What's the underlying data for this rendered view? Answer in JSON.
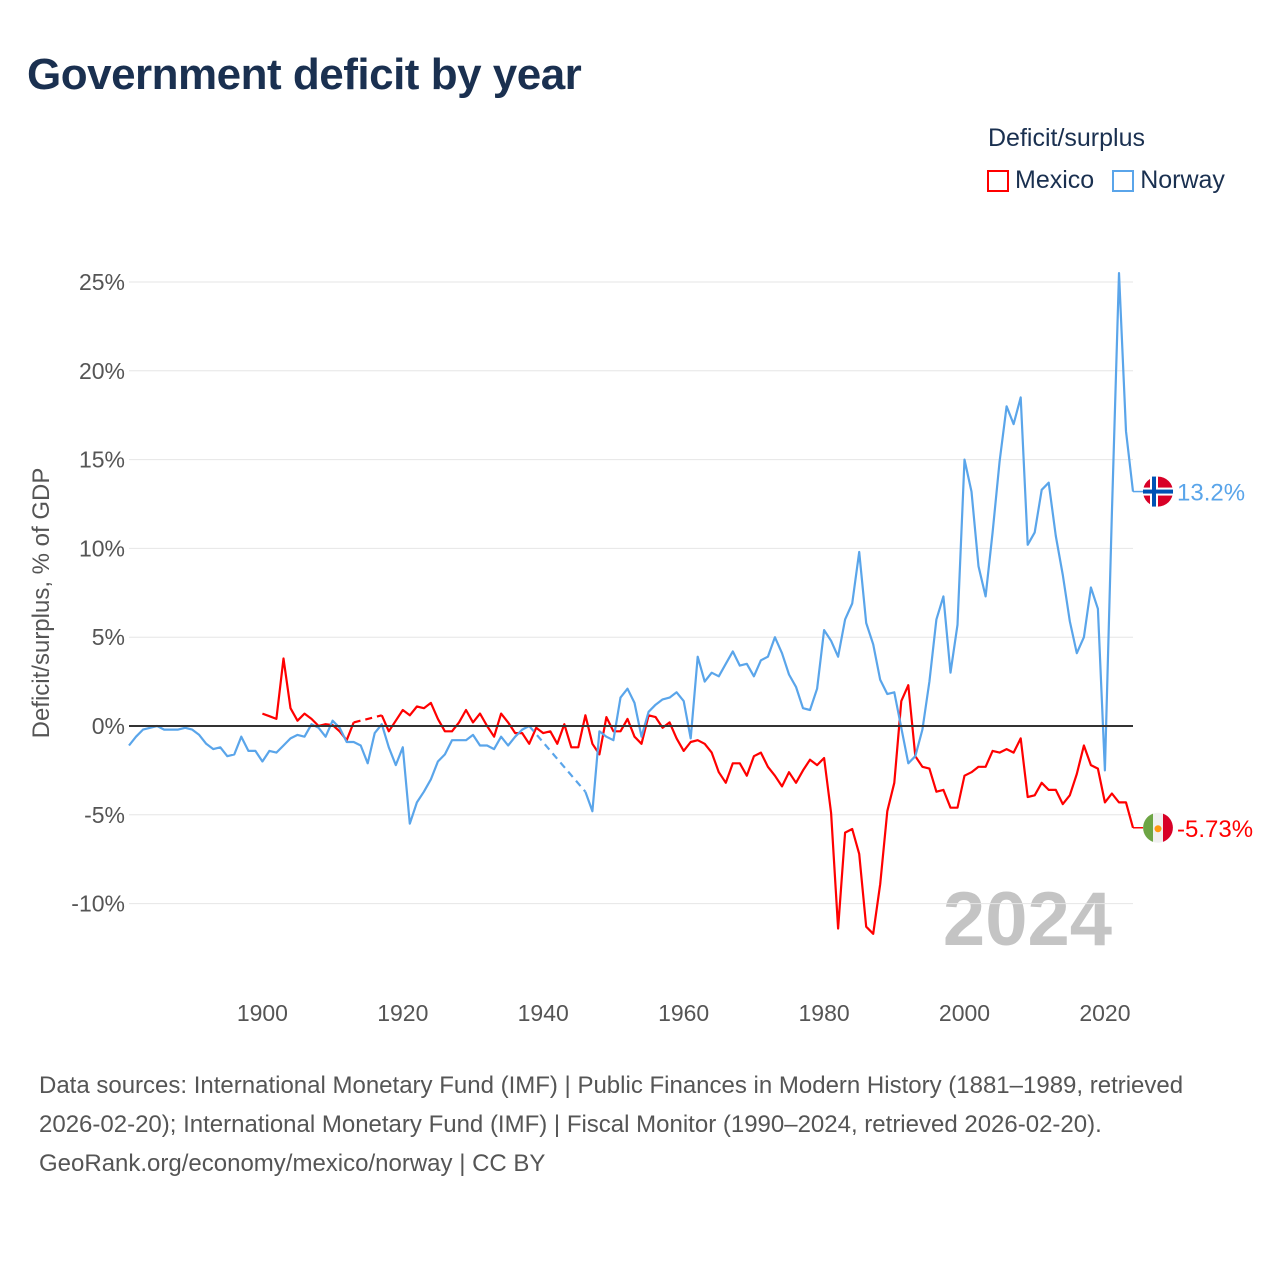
{
  "title": "Government deficit by year",
  "legend": {
    "title": "Deficit/surplus",
    "items": [
      {
        "name": "Mexico",
        "color": "#ff0000"
      },
      {
        "name": "Norway",
        "color": "#5aa5ea"
      }
    ]
  },
  "footer": {
    "sources": "Data sources: International Monetary Fund (IMF) | Public Finances in Modern History (1881–1989, retrieved 2026-02-20); International Monetary Fund (IMF) | Fiscal Monitor (1990–2024, retrieved 2026-02-20).",
    "credit": "GeoRank.org/economy/mexico/norway | CC BY"
  },
  "chart_data": {
    "type": "line",
    "title": "Government deficit by year",
    "xlabel": "",
    "ylabel": "Deficit/surplus, % of GDP",
    "xlim": [
      1881,
      2024
    ],
    "ylim": [
      -12.5,
      27
    ],
    "grid": true,
    "legend_position": "top-right",
    "watermark_year": "2024",
    "x_ticks": [
      1900,
      1920,
      1940,
      1960,
      1980,
      2000,
      2020
    ],
    "x_tick_labels": [
      "1900",
      "1920",
      "1940",
      "1960",
      "1980",
      "2000",
      "2020"
    ],
    "y_ticks": [
      -10,
      -5,
      0,
      5,
      10,
      15,
      20,
      25
    ],
    "y_tick_labels": [
      "-10%",
      "-5%",
      "0%",
      "5%",
      "10%",
      "15%",
      "20%",
      "25%"
    ],
    "x_start": 1881,
    "series": [
      {
        "name": "Mexico",
        "color": "#ff0000",
        "end_label": "-5.73%",
        "values": [
          null,
          null,
          null,
          null,
          null,
          null,
          null,
          null,
          null,
          null,
          null,
          null,
          null,
          null,
          null,
          null,
          null,
          null,
          null,
          0.7,
          0.55,
          0.4,
          3.8,
          1.0,
          0.3,
          0.7,
          0.4,
          0.0,
          0.1,
          0.05,
          -0.3,
          -0.8,
          0.2,
          null,
          null,
          null,
          0.6,
          -0.3,
          0.3,
          0.9,
          0.6,
          1.1,
          1.0,
          1.3,
          0.4,
          -0.3,
          -0.3,
          0.2,
          0.9,
          0.2,
          0.7,
          0.0,
          -0.6,
          0.7,
          0.2,
          -0.4,
          -0.4,
          -1.0,
          -0.1,
          -0.4,
          -0.3,
          -1.0,
          0.1,
          -1.2,
          -1.2,
          0.6,
          -1.0,
          -1.6,
          0.5,
          -0.3,
          -0.3,
          0.4,
          -0.6,
          -1.0,
          0.6,
          0.5,
          -0.1,
          0.2,
          -0.7,
          -1.4,
          -0.9,
          -0.8,
          -1.0,
          -1.5,
          -2.6,
          -3.2,
          -2.1,
          -2.1,
          -2.8,
          -1.7,
          -1.5,
          -2.3,
          -2.8,
          -3.4,
          -2.6,
          -3.2,
          -2.5,
          -1.9,
          -2.2,
          -1.8,
          -4.9,
          -11.4,
          -6.0,
          -5.8,
          -7.2,
          -11.3,
          -11.7,
          -8.9,
          -4.8,
          -3.2,
          1.4,
          2.3,
          -1.7,
          -2.3,
          -2.4,
          -3.7,
          -3.6,
          -4.6,
          -4.6,
          -2.8,
          -2.6,
          -2.3,
          -2.3,
          -1.4,
          -1.5,
          -1.3,
          -1.5,
          -0.7,
          -4.0,
          -3.9,
          -3.2,
          -3.6,
          -3.6,
          -4.4,
          -3.9,
          -2.7,
          -1.1,
          -2.2,
          -2.4,
          -4.3,
          -3.8,
          -4.3,
          -4.3,
          -5.73
        ]
      },
      {
        "name": "Norway",
        "color": "#5aa5ea",
        "end_label": "13.2%",
        "values": [
          -1.1,
          -0.6,
          -0.2,
          -0.1,
          0.0,
          -0.2,
          -0.2,
          -0.2,
          -0.1,
          -0.2,
          -0.5,
          -1.0,
          -1.3,
          -1.2,
          -1.7,
          -1.6,
          -0.6,
          -1.4,
          -1.4,
          -2.0,
          -1.4,
          -1.5,
          -1.1,
          -0.7,
          -0.5,
          -0.6,
          0.1,
          -0.1,
          -0.6,
          0.3,
          -0.1,
          -0.9,
          -0.9,
          -1.1,
          -2.1,
          -0.4,
          0.1,
          -1.2,
          -2.2,
          -1.2,
          -5.5,
          -4.3,
          -3.7,
          -3.0,
          -2.0,
          -1.6,
          -0.8,
          -0.8,
          -0.8,
          -0.5,
          -1.1,
          -1.1,
          -1.3,
          -0.6,
          -1.1,
          -0.6,
          -0.2,
          0.0,
          null,
          null,
          null,
          null,
          null,
          null,
          null,
          -3.7,
          -4.8,
          -0.3,
          -0.6,
          -0.8,
          1.6,
          2.1,
          1.3,
          -0.6,
          0.8,
          1.2,
          1.5,
          1.6,
          1.9,
          1.4,
          -0.7,
          3.9,
          2.5,
          3.0,
          2.8,
          3.5,
          4.2,
          3.4,
          3.5,
          2.8,
          3.7,
          3.9,
          5.0,
          4.1,
          2.9,
          2.2,
          1.0,
          0.9,
          2.1,
          5.4,
          4.8,
          3.9,
          6.0,
          6.9,
          9.8,
          5.8,
          4.6,
          2.6,
          1.8,
          1.9,
          -0.1,
          -2.1,
          -1.7,
          -0.2,
          2.5,
          6.0,
          7.3,
          3.0,
          5.7,
          15.0,
          13.2,
          9.0,
          7.3,
          10.9,
          14.9,
          18.0,
          17.0,
          18.5,
          10.2,
          10.9,
          13.3,
          13.7,
          10.7,
          8.5,
          5.9,
          4.1,
          5.0,
          7.8,
          6.6,
          -2.5,
          12.0,
          25.5,
          16.6,
          13.2
        ]
      }
    ]
  }
}
